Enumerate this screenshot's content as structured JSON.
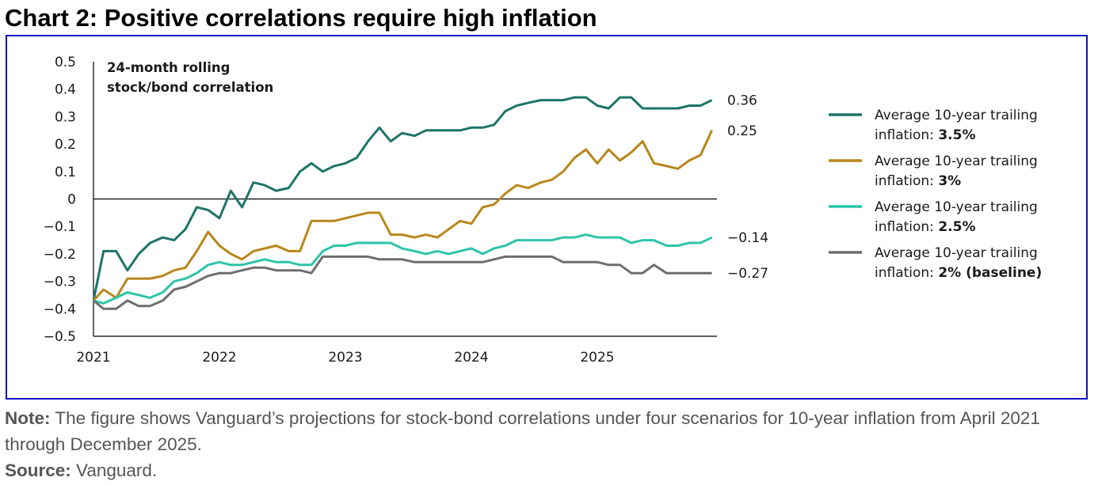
{
  "title": "Chart 2: Positive correlations require high inflation",
  "note": {
    "label": "Note:",
    "text": " The figure shows Vanguard’s projections for stock-bond correlations under four scenarios for 10-year inflation from April 2021 through December 2025."
  },
  "source": {
    "label": "Source:",
    "text": " Vanguard."
  },
  "chart_data": {
    "type": "line",
    "annotation_lines": [
      "24-month rolling",
      "stock/bond correlation"
    ],
    "xlim": [
      2021.0,
      2025.95
    ],
    "ylim": [
      -0.5,
      0.5
    ],
    "x_ticks": [
      2021,
      2022,
      2023,
      2024,
      2025
    ],
    "y_ticks": [
      0.5,
      0.4,
      0.3,
      0.2,
      0.1,
      0,
      -0.1,
      -0.2,
      -0.3,
      -0.4,
      -0.5
    ],
    "y_tick_labels": [
      "0.5",
      "0.4",
      "0.3",
      "0.2",
      "0.1",
      "0",
      "−0.1",
      "−0.2",
      "−0.3",
      "−0.4",
      "−0.5"
    ],
    "zero_line": true,
    "grid": false,
    "legend_position": "right",
    "series": [
      {
        "name_text": "Average 10-year trailing inflation: ",
        "name_line1": "Average 10-year trailing",
        "name_line2_plain": "inflation: ",
        "name_line2_bold": "3.5%",
        "color": "#1d7468",
        "end_label": "0.36",
        "x": [
          2021.0,
          2021.08,
          2021.18,
          2021.27,
          2021.36,
          2021.45,
          2021.55,
          2021.64,
          2021.73,
          2021.82,
          2021.91,
          2022.0,
          2022.09,
          2022.18,
          2022.27,
          2022.36,
          2022.45,
          2022.55,
          2022.64,
          2022.73,
          2022.82,
          2022.91,
          2023.0,
          2023.09,
          2023.18,
          2023.27,
          2023.36,
          2023.45,
          2023.55,
          2023.64,
          2023.73,
          2023.82,
          2023.91,
          2024.0,
          2024.09,
          2024.18,
          2024.27,
          2024.36,
          2024.45,
          2024.55,
          2024.64,
          2024.73,
          2024.82,
          2024.91,
          2025.0,
          2025.09,
          2025.18,
          2025.27,
          2025.36,
          2025.45,
          2025.55,
          2025.64,
          2025.73,
          2025.82,
          2025.91
        ],
        "y": [
          -0.37,
          -0.19,
          -0.19,
          -0.26,
          -0.2,
          -0.16,
          -0.14,
          -0.15,
          -0.11,
          -0.03,
          -0.04,
          -0.07,
          0.03,
          -0.03,
          0.06,
          0.05,
          0.03,
          0.04,
          0.1,
          0.13,
          0.1,
          0.12,
          0.13,
          0.15,
          0.21,
          0.26,
          0.21,
          0.24,
          0.23,
          0.25,
          0.25,
          0.25,
          0.25,
          0.26,
          0.26,
          0.27,
          0.32,
          0.34,
          0.35,
          0.36,
          0.36,
          0.36,
          0.37,
          0.37,
          0.34,
          0.33,
          0.37,
          0.37,
          0.33,
          0.33,
          0.33,
          0.33,
          0.34,
          0.34,
          0.36
        ]
      },
      {
        "name_text": "Average 10-year trailing inflation: ",
        "name_line1": "Average 10-year trailing",
        "name_line2_plain": "inflation: ",
        "name_line2_bold": "3%",
        "color": "#b8861b",
        "end_label": "0.25",
        "x": [
          2021.0,
          2021.08,
          2021.18,
          2021.27,
          2021.36,
          2021.45,
          2021.55,
          2021.64,
          2021.73,
          2021.82,
          2021.91,
          2022.0,
          2022.09,
          2022.18,
          2022.27,
          2022.36,
          2022.45,
          2022.55,
          2022.64,
          2022.73,
          2022.82,
          2022.91,
          2023.0,
          2023.09,
          2023.18,
          2023.27,
          2023.36,
          2023.45,
          2023.55,
          2023.64,
          2023.73,
          2023.82,
          2023.91,
          2024.0,
          2024.09,
          2024.18,
          2024.27,
          2024.36,
          2024.45,
          2024.55,
          2024.64,
          2024.73,
          2024.82,
          2024.91,
          2025.0,
          2025.09,
          2025.18,
          2025.27,
          2025.36,
          2025.45,
          2025.55,
          2025.64,
          2025.73,
          2025.82,
          2025.91
        ],
        "y": [
          -0.37,
          -0.33,
          -0.36,
          -0.29,
          -0.29,
          -0.29,
          -0.28,
          -0.26,
          -0.25,
          -0.19,
          -0.12,
          -0.17,
          -0.2,
          -0.22,
          -0.19,
          -0.18,
          -0.17,
          -0.19,
          -0.19,
          -0.08,
          -0.08,
          -0.08,
          -0.07,
          -0.06,
          -0.05,
          -0.05,
          -0.13,
          -0.13,
          -0.14,
          -0.13,
          -0.14,
          -0.11,
          -0.08,
          -0.09,
          -0.03,
          -0.02,
          0.02,
          0.05,
          0.04,
          0.06,
          0.07,
          0.1,
          0.15,
          0.18,
          0.13,
          0.18,
          0.14,
          0.17,
          0.21,
          0.13,
          0.12,
          0.11,
          0.14,
          0.16,
          0.25
        ]
      },
      {
        "name_text": "Average 10-year trailing inflation: ",
        "name_line1": "Average 10-year trailing",
        "name_line2_plain": "inflation: ",
        "name_line2_bold": "2.5%",
        "color": "#2ec4a9",
        "end_label": "−0.14",
        "x": [
          2021.0,
          2021.08,
          2021.18,
          2021.27,
          2021.36,
          2021.45,
          2021.55,
          2021.64,
          2021.73,
          2021.82,
          2021.91,
          2022.0,
          2022.09,
          2022.18,
          2022.27,
          2022.36,
          2022.45,
          2022.55,
          2022.64,
          2022.73,
          2022.82,
          2022.91,
          2023.0,
          2023.09,
          2023.18,
          2023.27,
          2023.36,
          2023.45,
          2023.55,
          2023.64,
          2023.73,
          2023.82,
          2023.91,
          2024.0,
          2024.09,
          2024.18,
          2024.27,
          2024.36,
          2024.45,
          2024.55,
          2024.64,
          2024.73,
          2024.82,
          2024.91,
          2025.0,
          2025.09,
          2025.18,
          2025.27,
          2025.36,
          2025.45,
          2025.55,
          2025.64,
          2025.73,
          2025.82,
          2025.91
        ],
        "y": [
          -0.37,
          -0.38,
          -0.36,
          -0.34,
          -0.35,
          -0.36,
          -0.34,
          -0.3,
          -0.29,
          -0.27,
          -0.24,
          -0.23,
          -0.24,
          -0.24,
          -0.23,
          -0.22,
          -0.23,
          -0.23,
          -0.24,
          -0.24,
          -0.19,
          -0.17,
          -0.17,
          -0.16,
          -0.16,
          -0.16,
          -0.16,
          -0.18,
          -0.19,
          -0.2,
          -0.19,
          -0.2,
          -0.19,
          -0.18,
          -0.2,
          -0.18,
          -0.17,
          -0.15,
          -0.15,
          -0.15,
          -0.15,
          -0.14,
          -0.14,
          -0.13,
          -0.14,
          -0.14,
          -0.14,
          -0.16,
          -0.15,
          -0.15,
          -0.17,
          -0.17,
          -0.16,
          -0.16,
          -0.14
        ]
      },
      {
        "name_text": "Average 10-year trailing inflation: ",
        "name_line1": "Average 10-year trailing",
        "name_line2_plain": "inflation: ",
        "name_line2_bold": "2% (baseline)",
        "color": "#6e6e6e",
        "end_label": "−0.27",
        "x": [
          2021.0,
          2021.08,
          2021.18,
          2021.27,
          2021.36,
          2021.45,
          2021.55,
          2021.64,
          2021.73,
          2021.82,
          2021.91,
          2022.0,
          2022.09,
          2022.18,
          2022.27,
          2022.36,
          2022.45,
          2022.55,
          2022.64,
          2022.73,
          2022.82,
          2022.91,
          2023.0,
          2023.09,
          2023.18,
          2023.27,
          2023.36,
          2023.45,
          2023.55,
          2023.64,
          2023.73,
          2023.82,
          2023.91,
          2024.0,
          2024.09,
          2024.18,
          2024.27,
          2024.36,
          2024.45,
          2024.55,
          2024.64,
          2024.73,
          2024.82,
          2024.91,
          2025.0,
          2025.09,
          2025.18,
          2025.27,
          2025.36,
          2025.45,
          2025.55,
          2025.64,
          2025.73,
          2025.82,
          2025.91
        ],
        "y": [
          -0.37,
          -0.4,
          -0.4,
          -0.37,
          -0.39,
          -0.39,
          -0.37,
          -0.33,
          -0.32,
          -0.3,
          -0.28,
          -0.27,
          -0.27,
          -0.26,
          -0.25,
          -0.25,
          -0.26,
          -0.26,
          -0.26,
          -0.27,
          -0.21,
          -0.21,
          -0.21,
          -0.21,
          -0.21,
          -0.22,
          -0.22,
          -0.22,
          -0.23,
          -0.23,
          -0.23,
          -0.23,
          -0.23,
          -0.23,
          -0.23,
          -0.22,
          -0.21,
          -0.21,
          -0.21,
          -0.21,
          -0.21,
          -0.23,
          -0.23,
          -0.23,
          -0.23,
          -0.24,
          -0.24,
          -0.27,
          -0.27,
          -0.24,
          -0.27,
          -0.27,
          -0.27,
          -0.27,
          -0.27
        ]
      }
    ]
  }
}
